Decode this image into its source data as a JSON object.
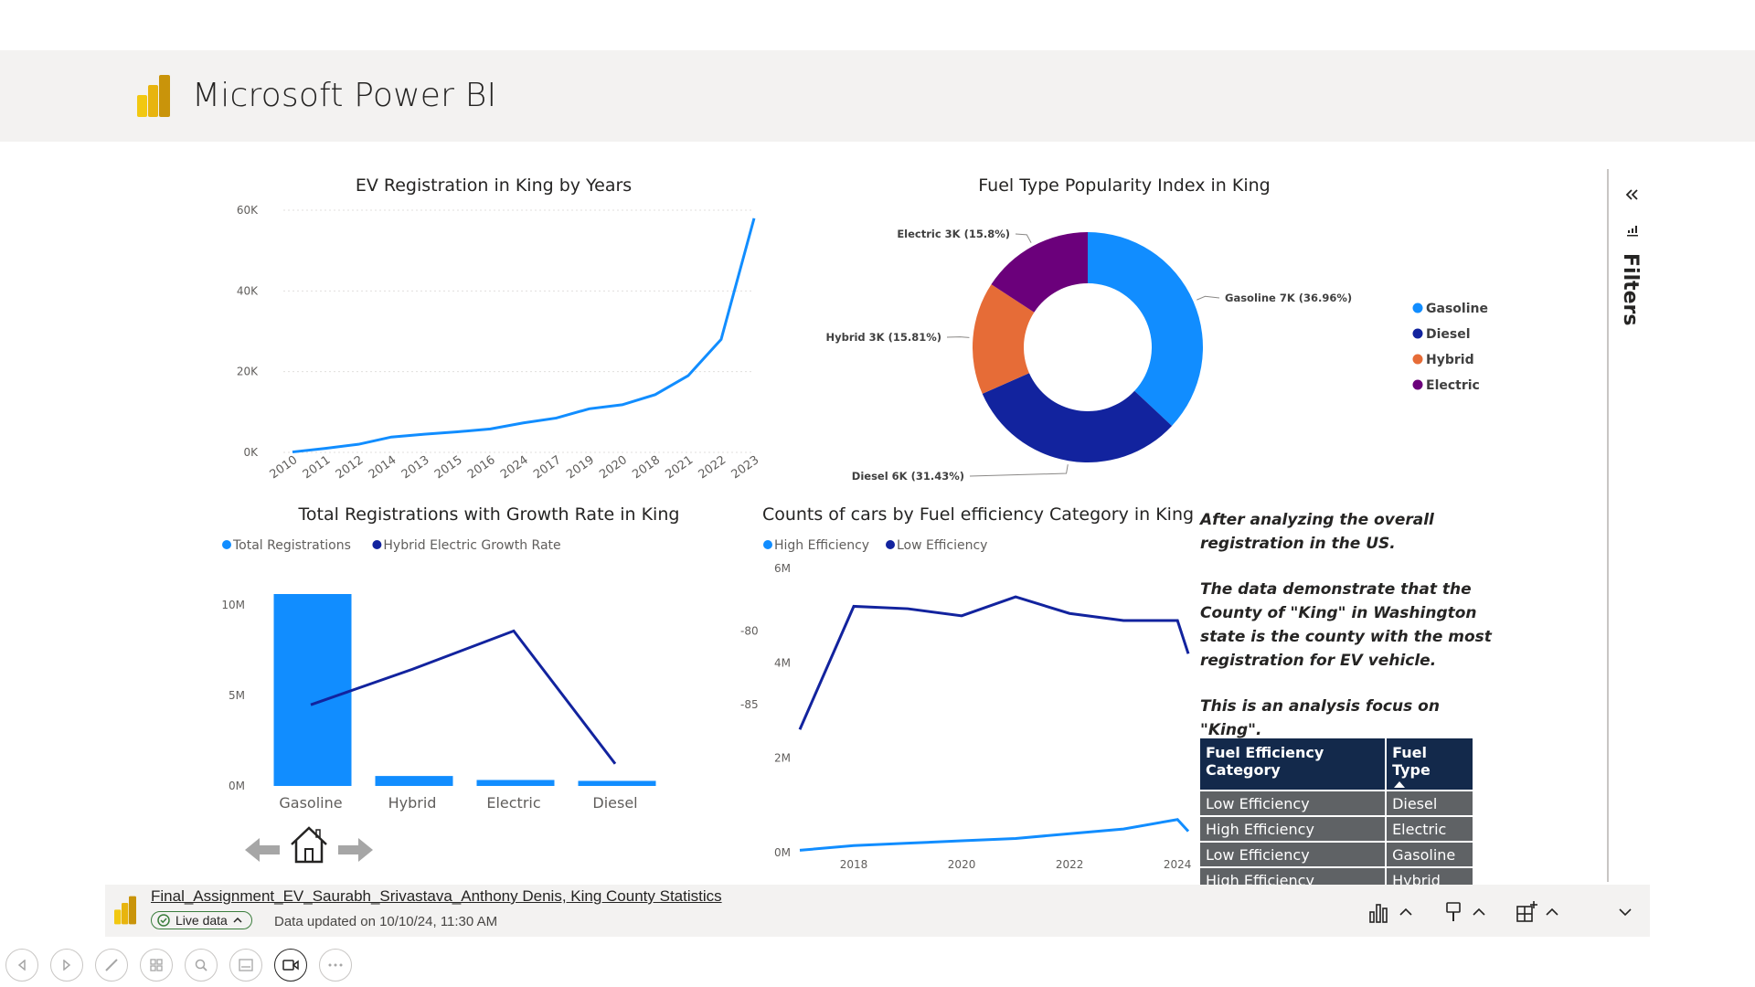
{
  "app": {
    "title": "Microsoft Power BI"
  },
  "charts": {
    "line_years": {
      "title": "EV Registration in King by Years",
      "y_ticks": [
        "60K",
        "40K",
        "20K",
        "0K"
      ],
      "categories": [
        "2010",
        "2011",
        "2012",
        "2014",
        "2013",
        "2015",
        "2016",
        "2024",
        "2017",
        "2019",
        "2020",
        "2018",
        "2021",
        "2022",
        "2023"
      ],
      "values": [
        100,
        1000,
        2000,
        3800,
        4500,
        5100,
        5800,
        7300,
        8500,
        10800,
        11800,
        14300,
        19000,
        28000,
        58000
      ],
      "color": "#118dff"
    },
    "donut": {
      "title": "Fuel Type Popularity Index in King",
      "slices": [
        {
          "name": "Gasoline",
          "value": 36.96,
          "label": "Gasoline 7K (36.96%)",
          "color": "#118dff"
        },
        {
          "name": "Diesel",
          "value": 31.43,
          "label": "Diesel 6K (31.43%)",
          "color": "#12239e"
        },
        {
          "name": "Hybrid",
          "value": 15.81,
          "label": "Hybrid 3K (15.81%)",
          "color": "#e66c37"
        },
        {
          "name": "Electric",
          "value": 15.8,
          "label": "Electric 3K (15.8%)",
          "color": "#6b007b"
        }
      ]
    },
    "combo": {
      "title": "Total Registrations with Growth Rate in King",
      "legend": [
        {
          "name": "Total Registrations",
          "color": "#118dff"
        },
        {
          "name": "Hybrid Electric Growth Rate",
          "color": "#12239e"
        }
      ],
      "categories": [
        "Gasoline",
        "Hybrid",
        "Electric",
        "Diesel"
      ],
      "bar_values": [
        10600000,
        550000,
        330000,
        280000
      ],
      "line_values": [
        -85,
        -82.6,
        -80,
        -89
      ],
      "y_ticks": [
        "10M",
        "5M",
        "0M"
      ],
      "y2_ticks": [
        "-80",
        "-85"
      ]
    },
    "efficiency": {
      "title": "Counts of cars by Fuel efficiency Category in King",
      "legend": [
        {
          "name": "High Efficiency",
          "color": "#118dff"
        },
        {
          "name": "Low Efficiency",
          "color": "#12239e"
        }
      ],
      "y_ticks": [
        "6M",
        "4M",
        "2M",
        "0M"
      ],
      "x_ticks": [
        "2018",
        "2020",
        "2022",
        "2024"
      ],
      "high_efficiency": [
        [
          2017,
          50000
        ],
        [
          2018,
          150000
        ],
        [
          2019,
          200000
        ],
        [
          2020,
          250000
        ],
        [
          2021,
          300000
        ],
        [
          2022,
          400000
        ],
        [
          2023,
          500000
        ],
        [
          2024,
          700000
        ],
        [
          2024.2,
          450000
        ]
      ],
      "low_efficiency": [
        [
          2017,
          2600000
        ],
        [
          2018,
          5200000
        ],
        [
          2019,
          5150000
        ],
        [
          2020,
          5000000
        ],
        [
          2021,
          5400000
        ],
        [
          2022,
          5050000
        ],
        [
          2023,
          4900000
        ],
        [
          2024,
          4900000
        ],
        [
          2024.2,
          4200000
        ]
      ]
    }
  },
  "narrative": {
    "p1": "After analyzing the overall registration in the US.",
    "p2": "The data demonstrate that the County of \"King\" in Washington state is the county with the most registration for EV vehicle.",
    "p3": "This is an analysis focus on \"King\"."
  },
  "table": {
    "headers": [
      "Fuel Efficiency Category",
      "Fuel Type"
    ],
    "rows": [
      [
        "Low Efficiency",
        "Diesel"
      ],
      [
        "High Efficiency",
        "Electric"
      ],
      [
        "Low Efficiency",
        "Gasoline"
      ],
      [
        "High Efficiency",
        "Hybrid"
      ]
    ]
  },
  "filters": {
    "label": "Filters"
  },
  "footer": {
    "report_name": "Final_Assignment_EV_Saurabh_Srivastava_Anthony Denis, King County Statistics",
    "live_label": "Live data",
    "updated": "Data updated on 10/10/24, 11:30 AM"
  },
  "icons": [
    "powerbi-logo-icon",
    "back-arrow-icon",
    "home-icon",
    "forward-arrow-icon",
    "bar-chart-icon",
    "format-brush-icon",
    "add-visual-icon",
    "chevron-up-icon",
    "chevron-down-icon",
    "collapse-icon",
    "filter-icon"
  ]
}
